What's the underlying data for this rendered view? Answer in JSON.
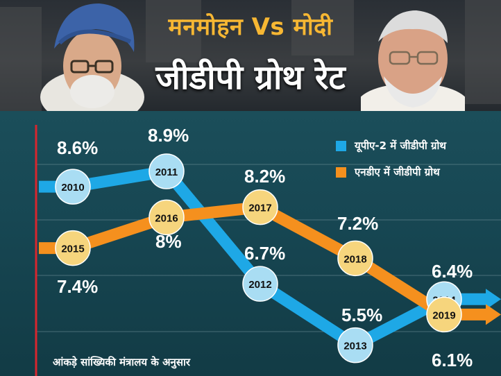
{
  "header": {
    "title": "मनमोहन Vs मोदी",
    "subtitle": "जीडीपी ग्रोथ रेट"
  },
  "legend": {
    "upa": "यूपीए-2 में जीडीपी ग्रोथ",
    "nda": "एनडीए में जीडीपी ग्रोथ"
  },
  "source": "आंकड़े सांख्यिकी मंत्रालय के अनुसार",
  "colors": {
    "upa": "#1ea8e6",
    "nda": "#f5901e",
    "upa_node": "#a9ddf3",
    "nda_node": "#f6d57d",
    "axis": "#d8262e",
    "title": "#f7b733"
  },
  "chart_data": {
    "type": "line",
    "title": "जीडीपी ग्रोथ रेट",
    "series": [
      {
        "name": "यूपीए-2 में जीडीपी ग्रोथ",
        "color": "#1ea8e6",
        "points": [
          {
            "year": "2010",
            "value": 8.6,
            "label": "8.6%"
          },
          {
            "year": "2011",
            "value": 8.9,
            "label": "8.9%"
          },
          {
            "year": "2012",
            "value": 6.7,
            "label": "6.7%"
          },
          {
            "year": "2013",
            "value": 5.5,
            "label": "5.5%"
          },
          {
            "year": "2014",
            "value": 6.4,
            "label": "6.4%"
          }
        ]
      },
      {
        "name": "एनडीए में जीडीपी ग्रोथ",
        "color": "#f5901e",
        "points": [
          {
            "year": "2015",
            "value": 7.4,
            "label": "7.4%"
          },
          {
            "year": "2016",
            "value": 8.0,
            "label": "8%"
          },
          {
            "year": "2017",
            "value": 8.2,
            "label": "8.2%"
          },
          {
            "year": "2018",
            "value": 7.2,
            "label": "7.2%"
          },
          {
            "year": "2019",
            "value": 6.1,
            "label": "6.1%"
          }
        ]
      }
    ],
    "xlabel": "",
    "ylabel": "",
    "grid": true,
    "legend": "top-right"
  }
}
